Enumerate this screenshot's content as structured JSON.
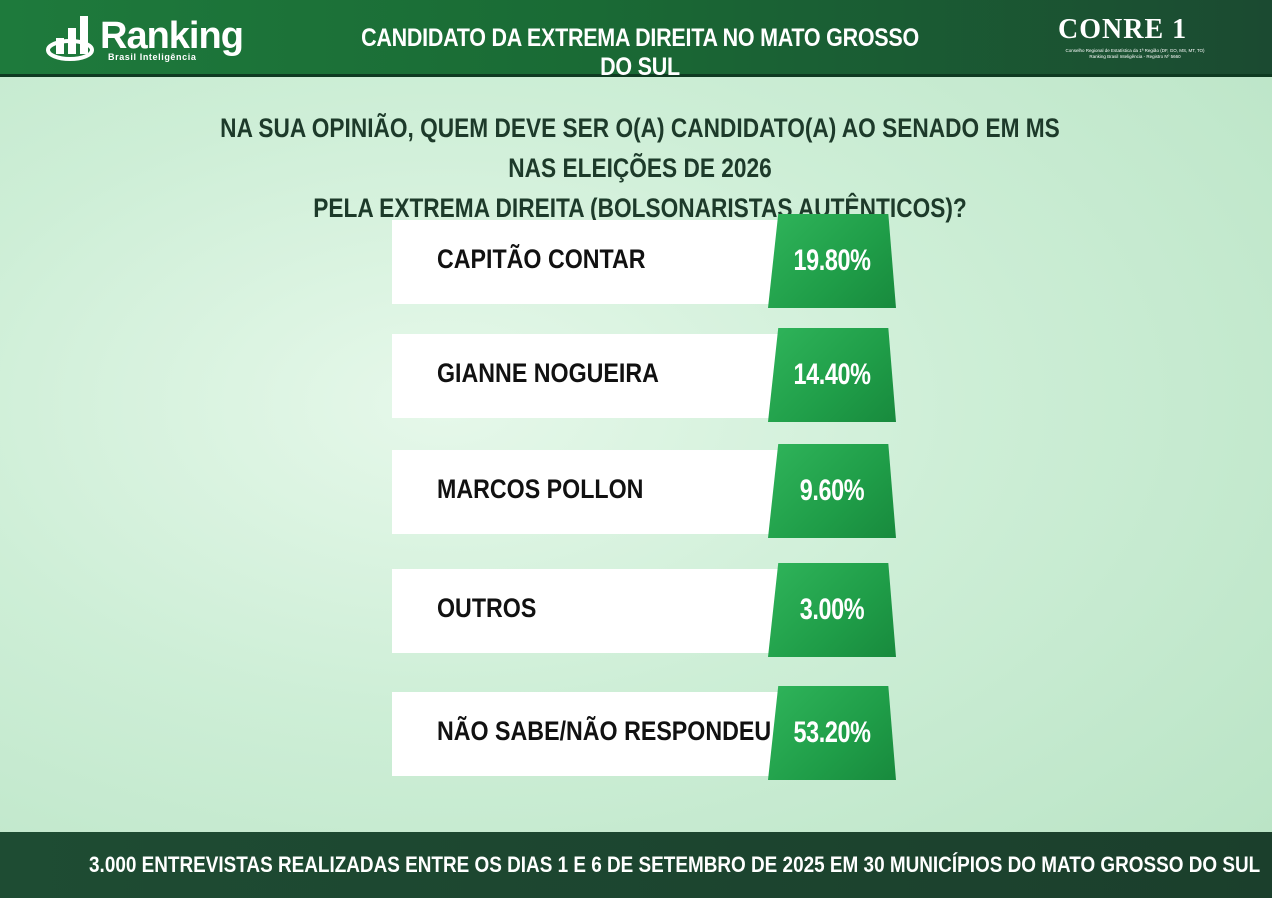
{
  "header": {
    "logo_text": "Ranking",
    "logo_subtext": "Brasil Inteligência",
    "title": "CANDIDATO DA EXTREMA DIREITA NO MATO GROSSO DO SUL",
    "conre_logo": "CONRE 1",
    "conre_subtext": "Conselho Regional de Estatística da 1ª Região (DF, GO, MS, MT, TO) Ranking Brasil Inteligência - Registro Nº 5660"
  },
  "question": {
    "line1": "NA SUA OPINIÃO, QUEM DEVE SER O(A) CANDIDATO(A) AO SENADO EM MS NAS ELEIÇÕES DE 2026",
    "line2": "PELA EXTREMA DIREITA (BOLSONARISTAS AUTÊNTICOS)?"
  },
  "chart_data": {
    "type": "table",
    "title": "NA SUA OPINIÃO, QUEM DEVE SER O(A) CANDIDATO(A) AO SENADO EM MS NAS ELEIÇÕES DE 2026 PELA EXTREMA DIREITA (BOLSONARISTAS AUTÊNTICOS)?",
    "categories": [
      "CAPITÃO CONTAR",
      "GIANNE NOGUEIRA",
      "MARCOS POLLON",
      "OUTROS",
      "NÃO SABE/NÃO RESPONDEU"
    ],
    "values": [
      19.8,
      14.4,
      9.6,
      3.0,
      53.2
    ],
    "labels": [
      "19.80%",
      "14.40%",
      "9.60%",
      "3.00%",
      "53.20%"
    ]
  },
  "colors": {
    "accent_green": "#1f9d48",
    "header_green": "#1a6b35",
    "footer_dark": "#1b3f2c"
  },
  "footer": {
    "text": "3.000 ENTREVISTAS REALIZADAS ENTRE OS DIAS 1 E 6 DE SETEMBRO DE 2025 EM 30 MUNICÍPIOS DO MATO GROSSO DO SUL"
  }
}
